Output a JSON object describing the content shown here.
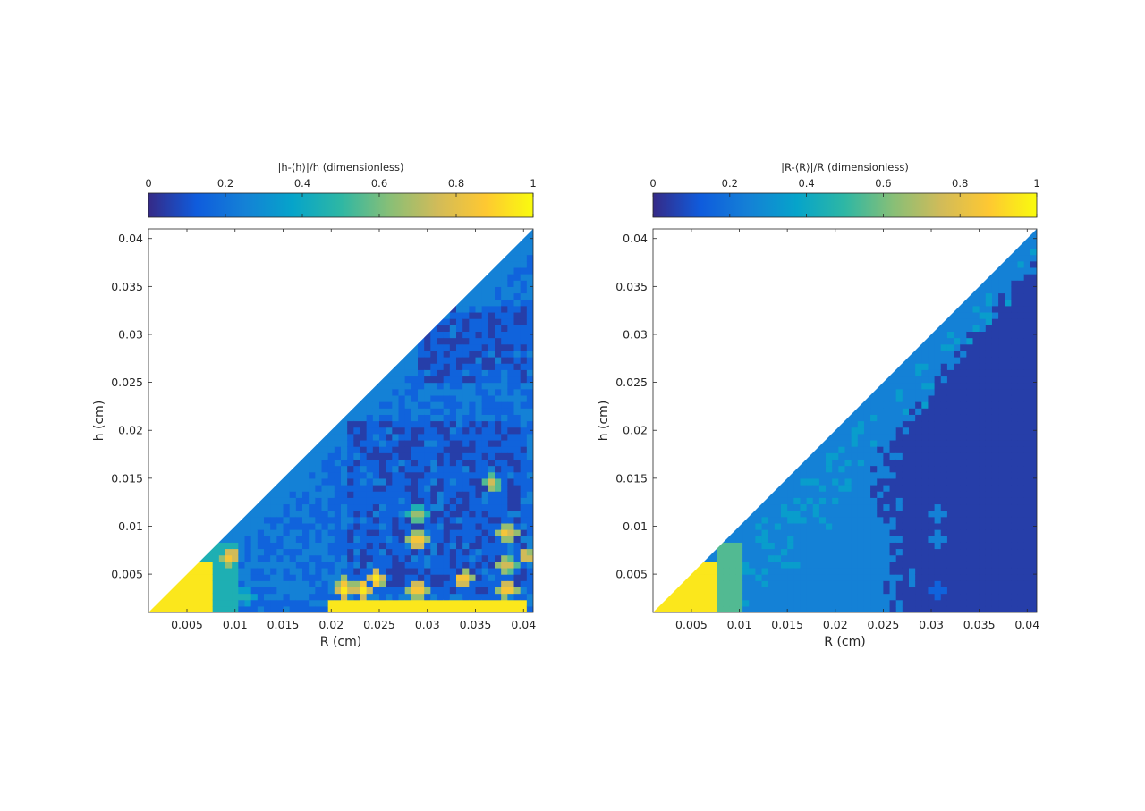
{
  "chart_data": [
    {
      "type": "heatmap",
      "subtype": "filled-contour",
      "xlabel": "R (cm)",
      "ylabel": "h (cm)",
      "xlim": [
        0.001,
        0.041
      ],
      "ylim": [
        0.001,
        0.041
      ],
      "xticks": [
        0.005,
        0.01,
        0.015,
        0.02,
        0.025,
        0.03,
        0.035,
        0.04
      ],
      "xtick_labels": [
        "0.005",
        "0.01",
        "0.015",
        "0.02",
        "0.025",
        "0.03",
        "0.035",
        "0.04"
      ],
      "yticks": [
        0.005,
        0.01,
        0.015,
        0.02,
        0.025,
        0.03,
        0.035,
        0.04
      ],
      "ytick_labels": [
        "0.005",
        "0.01",
        "0.015",
        "0.02",
        "0.025",
        "0.03",
        "0.035",
        "0.04"
      ],
      "valid_region": "h <= R",
      "colorbar": {
        "label": "|h-⟨h⟩|/h (dimensionless)",
        "location": "top",
        "range": [
          0,
          1
        ],
        "ticks": [
          0,
          0.2,
          0.4,
          0.6,
          0.8,
          1
        ],
        "tick_labels": [
          "0",
          "0.2",
          "0.4",
          "0.6",
          "0.8",
          "1"
        ],
        "colormap": "parula"
      },
      "features": {
        "base_level": 0.2,
        "regions": [
          {
            "r_range": [
              0.022,
              0.04
            ],
            "h_range": [
              0.003,
              0.021
            ],
            "value": 0.05,
            "description": "dark core"
          },
          {
            "r_range": [
              0.029,
              0.04
            ],
            "h_range": [
              0.025,
              0.033
            ],
            "value": 0.05,
            "description": "dark upper-right patch"
          },
          {
            "r_range": [
              0.001,
              0.0075
            ],
            "h_range": [
              0.001,
              0.0065
            ],
            "value": 1.0,
            "description": "yellow corner near origin"
          },
          {
            "r_range": [
              0.02,
              0.04
            ],
            "h_range": [
              0.001,
              0.002
            ],
            "value": 0.95,
            "description": "yellow band along bottom edge"
          }
        ],
        "hotspots": [
          {
            "r": 0.0213,
            "h": 0.0035,
            "value": 1.0
          },
          {
            "r": 0.0232,
            "h": 0.0035,
            "value": 1.0
          },
          {
            "r": 0.0248,
            "h": 0.0045,
            "value": 1.0
          },
          {
            "r": 0.029,
            "h": 0.0035,
            "value": 1.0
          },
          {
            "r": 0.0338,
            "h": 0.0045,
            "value": 1.0
          },
          {
            "r": 0.0383,
            "h": 0.0035,
            "value": 1.0
          },
          {
            "r": 0.029,
            "h": 0.0085,
            "value": 1.0
          },
          {
            "r": 0.0383,
            "h": 0.0094,
            "value": 0.9
          },
          {
            "r": 0.0367,
            "h": 0.0145,
            "value": 0.75
          },
          {
            "r": 0.029,
            "h": 0.0112,
            "value": 0.7
          },
          {
            "r": 0.0383,
            "h": 0.006,
            "value": 0.85
          },
          {
            "r": 0.0403,
            "h": 0.0069,
            "value": 0.9
          },
          {
            "r": 0.0096,
            "h": 0.0069,
            "value": 0.95
          },
          {
            "r": 0.0112,
            "h": 0.0027,
            "value": 0.5
          }
        ]
      }
    },
    {
      "type": "heatmap",
      "subtype": "filled-contour",
      "xlabel": "R (cm)",
      "ylabel": "h (cm)",
      "xlim": [
        0.001,
        0.041
      ],
      "ylim": [
        0.001,
        0.041
      ],
      "xticks": [
        0.005,
        0.01,
        0.015,
        0.02,
        0.025,
        0.03,
        0.035,
        0.04
      ],
      "xtick_labels": [
        "0.005",
        "0.01",
        "0.015",
        "0.02",
        "0.025",
        "0.03",
        "0.035",
        "0.04"
      ],
      "yticks": [
        0.005,
        0.01,
        0.015,
        0.02,
        0.025,
        0.03,
        0.035,
        0.04
      ],
      "ytick_labels": [
        "0.005",
        "0.01",
        "0.015",
        "0.02",
        "0.025",
        "0.03",
        "0.035",
        "0.04"
      ],
      "valid_region": "h <= R",
      "colorbar": {
        "label": "|R-⟨R⟩|/R (dimensionless)",
        "location": "top",
        "range": [
          0,
          1
        ],
        "ticks": [
          0,
          0.2,
          0.4,
          0.6,
          0.8,
          1
        ],
        "tick_labels": [
          "0",
          "0.2",
          "0.4",
          "0.6",
          "0.8",
          "1"
        ],
        "colormap": "parula"
      },
      "features": {
        "base_level": 0.05,
        "regions": [
          {
            "description": "medium-blue band near the h = R diagonal",
            "value": 0.2
          },
          {
            "r_range": [
              0.001,
              0.0075
            ],
            "h_range": [
              0.001,
              0.006
            ],
            "value": 1.0,
            "description": "yellow corner near origin"
          },
          {
            "r_range": [
              0.0075,
              0.0105
            ],
            "h_range": [
              0.001,
              0.0085
            ],
            "value": 0.5,
            "description": "teal fringe"
          }
        ],
        "hotspots": [
          {
            "r": 0.0306,
            "h": 0.0112,
            "value": 0.2
          },
          {
            "r": 0.0306,
            "h": 0.0085,
            "value": 0.2
          },
          {
            "r": 0.0306,
            "h": 0.0035,
            "value": 0.15
          },
          {
            "r": 0.0323,
            "h": 0.0302,
            "value": 0.2
          }
        ]
      }
    }
  ]
}
